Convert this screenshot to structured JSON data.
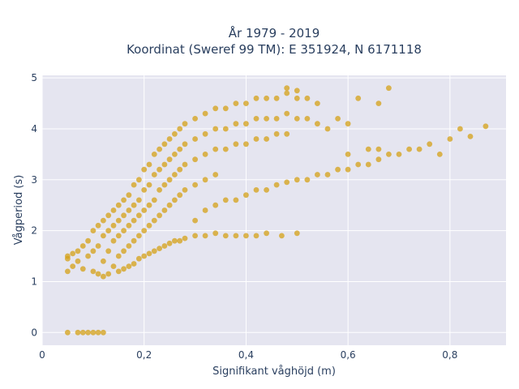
{
  "chart_data": {
    "type": "scatter",
    "title_line1": "År 1979 - 2019",
    "title_line2": "Koordinat (Sweref 99 TM): E 351924, N 6171118",
    "xlabel": "Signifikant våghöjd (m)",
    "ylabel": "Vågperiod (s)",
    "xlim": [
      0,
      0.91
    ],
    "ylim": [
      -0.25,
      5.05
    ],
    "x_ticks": [
      {
        "value": 0,
        "label": "0"
      },
      {
        "value": 0.2,
        "label": "0,2"
      },
      {
        "value": 0.4,
        "label": "0,4"
      },
      {
        "value": 0.6,
        "label": "0,6"
      },
      {
        "value": 0.8,
        "label": "0,8"
      }
    ],
    "y_ticks": [
      {
        "value": 0,
        "label": "0"
      },
      {
        "value": 1,
        "label": "1"
      },
      {
        "value": 2,
        "label": "2"
      },
      {
        "value": 3,
        "label": "3"
      },
      {
        "value": 4,
        "label": "4"
      },
      {
        "value": 5,
        "label": "5"
      }
    ],
    "grid": true,
    "legend": "none",
    "marker_color": "#d4a017",
    "plot_bg": "#e5e5f0",
    "series": [
      {
        "points": [
          [
            0.05,
            1.2
          ],
          [
            0.05,
            1.5
          ],
          [
            0.05,
            1.45
          ],
          [
            0.06,
            1.55
          ],
          [
            0.06,
            1.3
          ],
          [
            0.07,
            1.6
          ],
          [
            0.07,
            1.4
          ],
          [
            0.08,
            1.7
          ],
          [
            0.08,
            1.25
          ],
          [
            0.09,
            1.8
          ],
          [
            0.09,
            1.5
          ],
          [
            0.1,
            2.0
          ],
          [
            0.1,
            1.6
          ],
          [
            0.1,
            1.2
          ],
          [
            0.11,
            2.1
          ],
          [
            0.11,
            1.7
          ],
          [
            0.11,
            1.15
          ],
          [
            0.12,
            2.2
          ],
          [
            0.12,
            1.9
          ],
          [
            0.12,
            1.4
          ],
          [
            0.12,
            1.1
          ],
          [
            0.13,
            2.3
          ],
          [
            0.13,
            2.0
          ],
          [
            0.13,
            1.6
          ],
          [
            0.13,
            1.15
          ],
          [
            0.14,
            2.4
          ],
          [
            0.14,
            2.1
          ],
          [
            0.14,
            1.8
          ],
          [
            0.14,
            1.3
          ],
          [
            0.15,
            2.5
          ],
          [
            0.15,
            2.2
          ],
          [
            0.15,
            1.9
          ],
          [
            0.15,
            1.5
          ],
          [
            0.15,
            1.2
          ],
          [
            0.16,
            2.6
          ],
          [
            0.16,
            2.3
          ],
          [
            0.16,
            2.0
          ],
          [
            0.16,
            1.6
          ],
          [
            0.16,
            1.25
          ],
          [
            0.17,
            2.7
          ],
          [
            0.17,
            2.4
          ],
          [
            0.17,
            2.1
          ],
          [
            0.17,
            1.7
          ],
          [
            0.17,
            1.3
          ],
          [
            0.18,
            2.9
          ],
          [
            0.18,
            2.5
          ],
          [
            0.18,
            2.2
          ],
          [
            0.18,
            1.8
          ],
          [
            0.18,
            1.35
          ],
          [
            0.19,
            3.0
          ],
          [
            0.19,
            2.6
          ],
          [
            0.19,
            2.3
          ],
          [
            0.19,
            1.9
          ],
          [
            0.19,
            1.45
          ],
          [
            0.2,
            3.2
          ],
          [
            0.2,
            2.8
          ],
          [
            0.2,
            2.4
          ],
          [
            0.2,
            2.0
          ],
          [
            0.2,
            1.5
          ],
          [
            0.21,
            3.3
          ],
          [
            0.21,
            2.9
          ],
          [
            0.21,
            2.5
          ],
          [
            0.21,
            2.1
          ],
          [
            0.21,
            1.55
          ],
          [
            0.22,
            3.5
          ],
          [
            0.22,
            3.1
          ],
          [
            0.22,
            2.6
          ],
          [
            0.22,
            2.2
          ],
          [
            0.22,
            1.6
          ],
          [
            0.23,
            3.6
          ],
          [
            0.23,
            3.2
          ],
          [
            0.23,
            2.8
          ],
          [
            0.23,
            2.3
          ],
          [
            0.23,
            1.65
          ],
          [
            0.24,
            3.7
          ],
          [
            0.24,
            3.3
          ],
          [
            0.24,
            2.9
          ],
          [
            0.24,
            2.4
          ],
          [
            0.24,
            1.7
          ],
          [
            0.25,
            3.8
          ],
          [
            0.25,
            3.4
          ],
          [
            0.25,
            3.0
          ],
          [
            0.25,
            2.5
          ],
          [
            0.25,
            1.75
          ],
          [
            0.26,
            3.9
          ],
          [
            0.26,
            3.5
          ],
          [
            0.26,
            3.1
          ],
          [
            0.26,
            2.6
          ],
          [
            0.26,
            1.8
          ],
          [
            0.27,
            4.0
          ],
          [
            0.27,
            3.6
          ],
          [
            0.27,
            3.2
          ],
          [
            0.27,
            2.7
          ],
          [
            0.27,
            1.8
          ],
          [
            0.28,
            4.1
          ],
          [
            0.28,
            3.7
          ],
          [
            0.28,
            3.3
          ],
          [
            0.28,
            2.8
          ],
          [
            0.28,
            1.85
          ],
          [
            0.3,
            4.2
          ],
          [
            0.3,
            3.8
          ],
          [
            0.3,
            3.4
          ],
          [
            0.3,
            2.9
          ],
          [
            0.3,
            2.2
          ],
          [
            0.3,
            1.9
          ],
          [
            0.32,
            4.3
          ],
          [
            0.32,
            3.9
          ],
          [
            0.32,
            3.5
          ],
          [
            0.32,
            3.0
          ],
          [
            0.32,
            2.4
          ],
          [
            0.32,
            1.9
          ],
          [
            0.34,
            4.4
          ],
          [
            0.34,
            4.0
          ],
          [
            0.34,
            3.6
          ],
          [
            0.34,
            3.1
          ],
          [
            0.34,
            2.5
          ],
          [
            0.34,
            1.95
          ],
          [
            0.36,
            4.4
          ],
          [
            0.36,
            4.0
          ],
          [
            0.36,
            3.6
          ],
          [
            0.36,
            2.6
          ],
          [
            0.36,
            1.9
          ],
          [
            0.38,
            4.5
          ],
          [
            0.38,
            4.1
          ],
          [
            0.38,
            3.7
          ],
          [
            0.38,
            2.6
          ],
          [
            0.38,
            1.9
          ],
          [
            0.4,
            4.5
          ],
          [
            0.4,
            4.1
          ],
          [
            0.4,
            3.7
          ],
          [
            0.4,
            2.7
          ],
          [
            0.4,
            1.9
          ],
          [
            0.42,
            4.6
          ],
          [
            0.42,
            4.2
          ],
          [
            0.42,
            3.8
          ],
          [
            0.42,
            2.8
          ],
          [
            0.42,
            1.9
          ],
          [
            0.44,
            4.6
          ],
          [
            0.44,
            4.2
          ],
          [
            0.44,
            3.8
          ],
          [
            0.44,
            2.8
          ],
          [
            0.44,
            1.95
          ],
          [
            0.46,
            4.6
          ],
          [
            0.46,
            4.2
          ],
          [
            0.46,
            3.9
          ],
          [
            0.46,
            2.9
          ],
          [
            0.47,
            1.9
          ],
          [
            0.48,
            4.7
          ],
          [
            0.48,
            4.3
          ],
          [
            0.48,
            3.9
          ],
          [
            0.48,
            2.95
          ],
          [
            0.5,
            4.6
          ],
          [
            0.5,
            4.2
          ],
          [
            0.5,
            3.0
          ],
          [
            0.5,
            1.95
          ],
          [
            0.52,
            4.6
          ],
          [
            0.52,
            4.2
          ],
          [
            0.52,
            3.0
          ],
          [
            0.54,
            4.5
          ],
          [
            0.54,
            4.1
          ],
          [
            0.54,
            3.1
          ],
          [
            0.56,
            4.0
          ],
          [
            0.56,
            3.1
          ],
          [
            0.58,
            4.2
          ],
          [
            0.58,
            3.2
          ],
          [
            0.6,
            4.1
          ],
          [
            0.6,
            3.2
          ],
          [
            0.62,
            4.6
          ],
          [
            0.62,
            3.3
          ],
          [
            0.64,
            3.6
          ],
          [
            0.64,
            3.3
          ],
          [
            0.66,
            3.6
          ],
          [
            0.66,
            3.4
          ],
          [
            0.68,
            4.8
          ],
          [
            0.68,
            3.5
          ],
          [
            0.7,
            3.5
          ],
          [
            0.72,
            3.6
          ],
          [
            0.74,
            3.6
          ],
          [
            0.76,
            3.7
          ],
          [
            0.78,
            3.5
          ],
          [
            0.8,
            3.8
          ],
          [
            0.82,
            4.0
          ],
          [
            0.84,
            3.85
          ],
          [
            0.87,
            4.05
          ],
          [
            0.48,
            4.8
          ],
          [
            0.5,
            4.75
          ],
          [
            0.66,
            4.5
          ],
          [
            0.6,
            3.5
          ],
          [
            0.07,
            0
          ],
          [
            0.08,
            0
          ],
          [
            0.09,
            0
          ],
          [
            0.1,
            0
          ],
          [
            0.11,
            0
          ],
          [
            0.12,
            0
          ],
          [
            0.05,
            0
          ]
        ]
      }
    ]
  }
}
